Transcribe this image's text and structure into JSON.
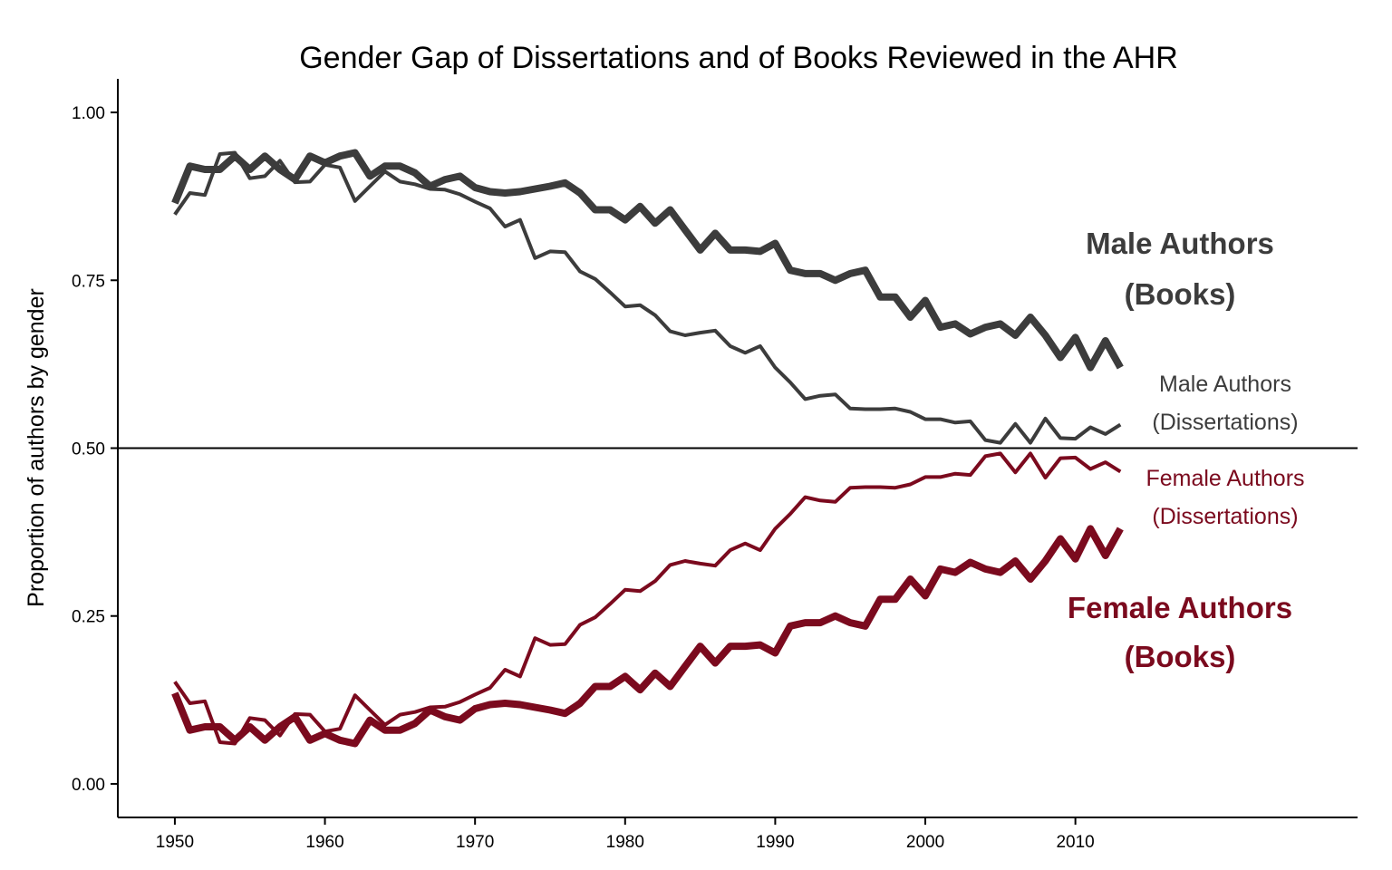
{
  "chart_data": {
    "type": "line",
    "title": "Gender Gap of Dissertations and of Books Reviewed in the AHR",
    "xlabel": "",
    "ylabel": "Proportion of authors by gender",
    "xlim": [
      1946.2,
      2028.8
    ],
    "ylim": [
      -0.05,
      1.05
    ],
    "x_ticks": [
      1950,
      1960,
      1970,
      1980,
      1990,
      2000,
      2010
    ],
    "y_ticks": [
      0.0,
      0.25,
      0.5,
      0.75,
      1.0
    ],
    "y_tick_labels": [
      "0.00",
      "0.25",
      "0.50",
      "0.75",
      "1.00"
    ],
    "reference_line": 0.5,
    "grid": false,
    "legend": "direct labels at right",
    "colors": {
      "male": "#3c3c3c",
      "female": "#7b0a1e"
    },
    "series": [
      {
        "name": "Male Authors\n(Books)",
        "label_lines": [
          "Male Authors",
          "(Books)"
        ],
        "color": "#3c3c3c",
        "weight": "thick",
        "x": [
          1950,
          1951,
          1952,
          1953,
          1954,
          1955,
          1956,
          1957,
          1958,
          1959,
          1960,
          1961,
          1962,
          1963,
          1964,
          1965,
          1966,
          1967,
          1968,
          1969,
          1970,
          1971,
          1972,
          1973,
          1974,
          1975,
          1976,
          1977,
          1978,
          1979,
          1980,
          1981,
          1982,
          1983,
          1984,
          1985,
          1986,
          1987,
          1988,
          1989,
          1990,
          1991,
          1992,
          1993,
          1994,
          1995,
          1996,
          1997,
          1998,
          1999,
          2000,
          2001,
          2002,
          2003,
          2004,
          2005,
          2006,
          2007,
          2008,
          2009,
          2010,
          2011,
          2012,
          2013
        ],
        "values": [
          0.865,
          0.92,
          0.915,
          0.915,
          0.935,
          0.915,
          0.935,
          0.915,
          0.9,
          0.935,
          0.925,
          0.935,
          0.94,
          0.905,
          0.92,
          0.92,
          0.91,
          0.89,
          0.9,
          0.905,
          0.888,
          0.882,
          0.88,
          0.882,
          0.886,
          0.89,
          0.895,
          0.88,
          0.855,
          0.855,
          0.84,
          0.86,
          0.835,
          0.855,
          0.825,
          0.795,
          0.82,
          0.795,
          0.795,
          0.793,
          0.805,
          0.765,
          0.76,
          0.76,
          0.75,
          0.76,
          0.765,
          0.725,
          0.725,
          0.695,
          0.72,
          0.68,
          0.685,
          0.67,
          0.68,
          0.685,
          0.668,
          0.695,
          0.668,
          0.635,
          0.665,
          0.62,
          0.66,
          0.62
        ]
      },
      {
        "name": "Male Authors\n(Dissertations)",
        "label_lines": [
          "Male Authors",
          "(Dissertations)"
        ],
        "color": "#3c3c3c",
        "weight": "thin",
        "x": [
          1950,
          1951,
          1952,
          1953,
          1954,
          1955,
          1956,
          1957,
          1958,
          1959,
          1960,
          1961,
          1962,
          1963,
          1964,
          1965,
          1966,
          1967,
          1968,
          1969,
          1970,
          1971,
          1972,
          1973,
          1974,
          1975,
          1976,
          1977,
          1978,
          1979,
          1980,
          1981,
          1982,
          1983,
          1984,
          1985,
          1986,
          1987,
          1988,
          1989,
          1990,
          1991,
          1992,
          1993,
          1994,
          1995,
          1996,
          1997,
          1998,
          1999,
          2000,
          2001,
          2002,
          2003,
          2004,
          2005,
          2006,
          2007,
          2008,
          2009,
          2010,
          2011,
          2012,
          2013
        ],
        "values": [
          0.848,
          0.88,
          0.877,
          0.938,
          0.94,
          0.902,
          0.905,
          0.928,
          0.896,
          0.897,
          0.922,
          0.918,
          0.868,
          0.89,
          0.912,
          0.897,
          0.893,
          0.886,
          0.885,
          0.878,
          0.867,
          0.857,
          0.83,
          0.84,
          0.783,
          0.793,
          0.792,
          0.763,
          0.752,
          0.732,
          0.711,
          0.713,
          0.698,
          0.674,
          0.668,
          0.672,
          0.675,
          0.652,
          0.642,
          0.652,
          0.62,
          0.598,
          0.573,
          0.578,
          0.58,
          0.559,
          0.558,
          0.558,
          0.559,
          0.554,
          0.543,
          0.543,
          0.538,
          0.54,
          0.512,
          0.508,
          0.536,
          0.508,
          0.544,
          0.515,
          0.514,
          0.531,
          0.521,
          0.535
        ]
      },
      {
        "name": "Female Authors\n(Dissertations)",
        "label_lines": [
          "Female Authors",
          "(Dissertations)"
        ],
        "color": "#7b0a1e",
        "weight": "thin",
        "x": [
          1950,
          1951,
          1952,
          1953,
          1954,
          1955,
          1956,
          1957,
          1958,
          1959,
          1960,
          1961,
          1962,
          1963,
          1964,
          1965,
          1966,
          1967,
          1968,
          1969,
          1970,
          1971,
          1972,
          1973,
          1974,
          1975,
          1976,
          1977,
          1978,
          1979,
          1980,
          1981,
          1982,
          1983,
          1984,
          1985,
          1986,
          1987,
          1988,
          1989,
          1990,
          1991,
          1992,
          1993,
          1994,
          1995,
          1996,
          1997,
          1998,
          1999,
          2000,
          2001,
          2002,
          2003,
          2004,
          2005,
          2006,
          2007,
          2008,
          2009,
          2010,
          2011,
          2012,
          2013
        ],
        "values": [
          0.152,
          0.12,
          0.123,
          0.062,
          0.06,
          0.098,
          0.095,
          0.072,
          0.104,
          0.103,
          0.078,
          0.082,
          0.132,
          0.11,
          0.088,
          0.103,
          0.107,
          0.114,
          0.115,
          0.122,
          0.133,
          0.143,
          0.17,
          0.16,
          0.217,
          0.207,
          0.208,
          0.237,
          0.248,
          0.268,
          0.289,
          0.287,
          0.302,
          0.326,
          0.332,
          0.328,
          0.325,
          0.348,
          0.358,
          0.348,
          0.38,
          0.402,
          0.427,
          0.422,
          0.42,
          0.441,
          0.442,
          0.442,
          0.441,
          0.446,
          0.457,
          0.457,
          0.462,
          0.46,
          0.488,
          0.492,
          0.464,
          0.492,
          0.456,
          0.485,
          0.486,
          0.469,
          0.479,
          0.465
        ]
      },
      {
        "name": "Female Authors\n(Books)",
        "label_lines": [
          "Female Authors",
          "(Books)"
        ],
        "color": "#7b0a1e",
        "weight": "thick",
        "x": [
          1950,
          1951,
          1952,
          1953,
          1954,
          1955,
          1956,
          1957,
          1958,
          1959,
          1960,
          1961,
          1962,
          1963,
          1964,
          1965,
          1966,
          1967,
          1968,
          1969,
          1970,
          1971,
          1972,
          1973,
          1974,
          1975,
          1976,
          1977,
          1978,
          1979,
          1980,
          1981,
          1982,
          1983,
          1984,
          1985,
          1986,
          1987,
          1988,
          1989,
          1990,
          1991,
          1992,
          1993,
          1994,
          1995,
          1996,
          1997,
          1998,
          1999,
          2000,
          2001,
          2002,
          2003,
          2004,
          2005,
          2006,
          2007,
          2008,
          2009,
          2010,
          2011,
          2012,
          2013
        ],
        "values": [
          0.135,
          0.08,
          0.085,
          0.085,
          0.065,
          0.085,
          0.065,
          0.085,
          0.1,
          0.065,
          0.075,
          0.065,
          0.06,
          0.095,
          0.08,
          0.08,
          0.09,
          0.11,
          0.1,
          0.095,
          0.112,
          0.118,
          0.12,
          0.118,
          0.114,
          0.11,
          0.105,
          0.12,
          0.145,
          0.145,
          0.16,
          0.14,
          0.165,
          0.145,
          0.175,
          0.205,
          0.18,
          0.205,
          0.205,
          0.207,
          0.195,
          0.235,
          0.24,
          0.24,
          0.25,
          0.24,
          0.235,
          0.275,
          0.275,
          0.305,
          0.28,
          0.32,
          0.315,
          0.33,
          0.32,
          0.315,
          0.332,
          0.305,
          0.332,
          0.365,
          0.335,
          0.38,
          0.34,
          0.38
        ]
      }
    ]
  }
}
